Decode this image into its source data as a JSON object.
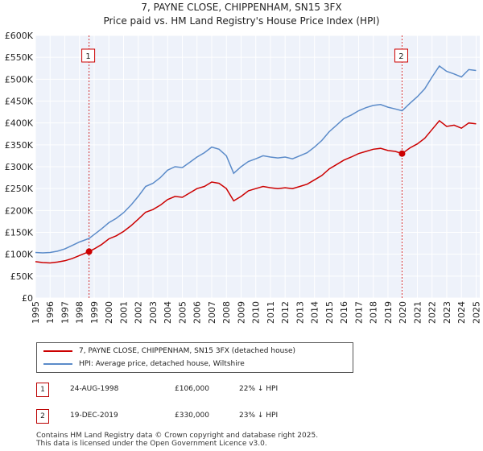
{
  "title": "7, PAYNE CLOSE, CHIPPENHAM, SN15 3FX",
  "subtitle": "Price paid vs. HM Land Registry's House Price Index (HPI)",
  "chart_data": {
    "type": "line",
    "ylim": [
      0,
      600000
    ],
    "xlim": [
      1995,
      2025.25
    ],
    "y_ticks": [
      {
        "value": 0,
        "label": "£0"
      },
      {
        "value": 50000,
        "label": "£50K"
      },
      {
        "value": 100000,
        "label": "£100K"
      },
      {
        "value": 150000,
        "label": "£150K"
      },
      {
        "value": 200000,
        "label": "£200K"
      },
      {
        "value": 250000,
        "label": "£250K"
      },
      {
        "value": 300000,
        "label": "£300K"
      },
      {
        "value": 350000,
        "label": "£350K"
      },
      {
        "value": 400000,
        "label": "£400K"
      },
      {
        "value": 450000,
        "label": "£450K"
      },
      {
        "value": 500000,
        "label": "£500K"
      },
      {
        "value": 550000,
        "label": "£550K"
      },
      {
        "value": 600000,
        "label": "£600K"
      }
    ],
    "x_ticks": [
      "1995",
      "1996",
      "1997",
      "1998",
      "1999",
      "2000",
      "2001",
      "2002",
      "2003",
      "2004",
      "2005",
      "2006",
      "2007",
      "2008",
      "2009",
      "2010",
      "2011",
      "2012",
      "2013",
      "2014",
      "2015",
      "2016",
      "2017",
      "2018",
      "2019",
      "2020",
      "2021",
      "2022",
      "2023",
      "2024",
      "2025"
    ],
    "series": [
      {
        "name": "7, PAYNE CLOSE, CHIPPENHAM, SN15 3FX (detached house)",
        "color": "#cc0000",
        "x": [
          1995.0,
          1995.5,
          1996.0,
          1996.5,
          1997.0,
          1997.5,
          1998.0,
          1998.65,
          1999.0,
          1999.5,
          2000.0,
          2000.5,
          2001.0,
          2001.5,
          2002.0,
          2002.5,
          2003.0,
          2003.5,
          2004.0,
          2004.5,
          2005.0,
          2005.5,
          2006.0,
          2006.5,
          2007.0,
          2007.5,
          2008.0,
          2008.5,
          2009.0,
          2009.5,
          2010.0,
          2010.5,
          2011.0,
          2011.5,
          2012.0,
          2012.5,
          2013.0,
          2013.5,
          2014.0,
          2014.5,
          2015.0,
          2015.5,
          2016.0,
          2016.5,
          2017.0,
          2017.5,
          2018.0,
          2018.5,
          2019.0,
          2019.5,
          2019.96,
          2020.5,
          2021.0,
          2021.5,
          2022.0,
          2022.5,
          2023.0,
          2023.5,
          2024.0,
          2024.5,
          2025.0
        ],
        "values": [
          83000,
          81000,
          80000,
          82000,
          85000,
          90000,
          97000,
          106000,
          112000,
          122000,
          135000,
          142000,
          152000,
          165000,
          180000,
          196000,
          202000,
          212000,
          225000,
          232000,
          230000,
          240000,
          250000,
          255000,
          265000,
          262000,
          250000,
          222000,
          232000,
          245000,
          250000,
          255000,
          252000,
          250000,
          252000,
          250000,
          255000,
          260000,
          270000,
          280000,
          295000,
          305000,
          315000,
          322000,
          330000,
          335000,
          340000,
          342000,
          337000,
          335000,
          330000,
          343000,
          352000,
          365000,
          385000,
          405000,
          392000,
          395000,
          388000,
          400000,
          398000
        ]
      },
      {
        "name": "HPI: Average price, detached house, Wiltshire",
        "color": "#5b8bc9",
        "x": [
          1995.0,
          1995.5,
          1996.0,
          1996.5,
          1997.0,
          1997.5,
          1998.0,
          1998.65,
          1999.0,
          1999.5,
          2000.0,
          2000.5,
          2001.0,
          2001.5,
          2002.0,
          2002.5,
          2003.0,
          2003.5,
          2004.0,
          2004.5,
          2005.0,
          2005.5,
          2006.0,
          2006.5,
          2007.0,
          2007.5,
          2008.0,
          2008.5,
          2009.0,
          2009.5,
          2010.0,
          2010.5,
          2011.0,
          2011.5,
          2012.0,
          2012.5,
          2013.0,
          2013.5,
          2014.0,
          2014.5,
          2015.0,
          2015.5,
          2016.0,
          2016.5,
          2017.0,
          2017.5,
          2018.0,
          2018.5,
          2019.0,
          2019.5,
          2019.96,
          2020.5,
          2021.0,
          2021.5,
          2022.0,
          2022.5,
          2023.0,
          2023.5,
          2024.0,
          2024.5,
          2025.0
        ],
        "values": [
          104000,
          103000,
          104000,
          107000,
          112000,
          120000,
          128000,
          136000,
          145000,
          158000,
          172000,
          182000,
          195000,
          212000,
          232000,
          255000,
          262000,
          275000,
          292000,
          300000,
          298000,
          310000,
          322000,
          332000,
          345000,
          340000,
          325000,
          285000,
          300000,
          312000,
          318000,
          325000,
          322000,
          320000,
          322000,
          318000,
          325000,
          332000,
          345000,
          360000,
          380000,
          395000,
          410000,
          418000,
          428000,
          435000,
          440000,
          442000,
          436000,
          432000,
          428000,
          445000,
          460000,
          478000,
          505000,
          530000,
          518000,
          512000,
          505000,
          522000,
          520000
        ]
      }
    ],
    "sales": [
      {
        "label": "1",
        "x": 1998.65,
        "value": 106000
      },
      {
        "label": "2",
        "x": 2019.96,
        "value": 330000
      }
    ]
  },
  "legend": [
    {
      "label": "7, PAYNE CLOSE, CHIPPENHAM, SN15 3FX (detached house)",
      "color": "#cc0000"
    },
    {
      "label": "HPI: Average price, detached house, Wiltshire",
      "color": "#5b8bc9"
    }
  ],
  "sales_table": [
    {
      "num": "1",
      "date": "24-AUG-1998",
      "price": "£106,000",
      "hpi": "22% ↓ HPI"
    },
    {
      "num": "2",
      "date": "19-DEC-2019",
      "price": "£330,000",
      "hpi": "23% ↓ HPI"
    }
  ],
  "footer": {
    "line1": "Contains HM Land Registry data © Crown copyright and database right 2025.",
    "line2": "This data is licensed under the Open Government Licence v3.0."
  }
}
